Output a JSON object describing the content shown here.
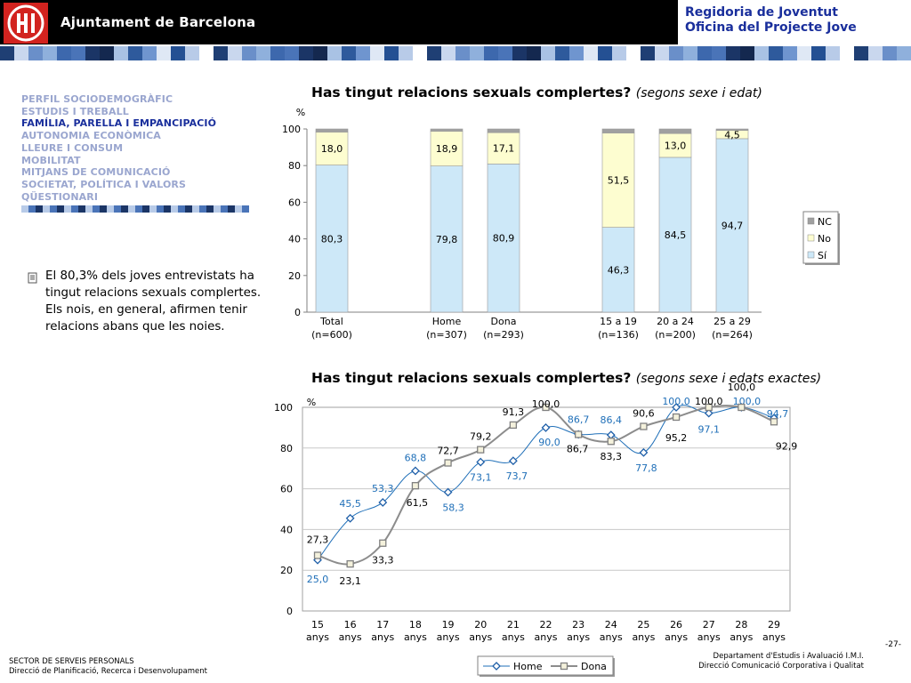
{
  "header": {
    "org_name": "Ajuntament de Barcelona",
    "dept_line1": "Regidoria de Joventut",
    "dept_line2": "Oficina del Projecte Jove",
    "colors": {
      "black": "#000000",
      "red": "#d2231f",
      "blue_text": "#1a2f9c"
    }
  },
  "nav": {
    "items": [
      "PERFIL SOCIODEMOGRÀFIC",
      "ESTUDIS I TREBALL",
      "FAMÍLIA, PARELLA I EMPANCIPACIÓ",
      "AUTONOMIA ECONÒMICA",
      "LLEURE I CONSUM",
      "MOBILITAT",
      "MITJANS DE COMUNICACIÓ",
      "SOCIETAT, POLÍTICA I VALORS",
      "QÜESTIONARI"
    ],
    "active_index": 2
  },
  "bullet_text": "El 80,3% dels joves entrevistats ha tingut relacions sexuals complertes. Els nois, en general, afirmen tenir relacions abans que les noies.",
  "footer": {
    "left_line1": "SECTOR DE SERVEIS PERSONALS",
    "left_line2": "Direcció de Planificació, Recerca i Desenvolupament",
    "right_line1": "Departament d'Estudis i Avaluació I.M.I.",
    "right_line2": "Direcció Comunicació Corporativa i Qualitat",
    "page": "-27-"
  },
  "chart_data": [
    {
      "type": "bar",
      "stacked": true,
      "title": "Has tingut relacions sexuals complertes?",
      "subtitle": "(segons sexe i edat)",
      "ylabel": "%",
      "ylim": [
        0,
        100
      ],
      "yticks": [
        0,
        20,
        40,
        60,
        80,
        100
      ],
      "categories": [
        {
          "label": "Total",
          "n": "(n=600)"
        },
        {
          "label": "Home",
          "n": "(n=307)"
        },
        {
          "label": "Dona",
          "n": "(n=293)"
        },
        {
          "label": "15 a 19",
          "n": "(n=136)"
        },
        {
          "label": "20 a 24",
          "n": "(n=200)"
        },
        {
          "label": "25 a 29",
          "n": "(n=264)"
        }
      ],
      "series": [
        {
          "name": "Sí",
          "color": "#cde8f8",
          "values": [
            80.3,
            79.8,
            80.9,
            46.3,
            84.5,
            94.7
          ],
          "labels": [
            "80,3",
            "79,8",
            "80,9",
            "46,3",
            "84,5",
            "94,7"
          ]
        },
        {
          "name": "No",
          "color": "#fdfdd0",
          "values": [
            18.0,
            18.9,
            17.1,
            51.5,
            13.0,
            4.5
          ],
          "labels": [
            "18,0",
            "18,9",
            "17,1",
            "51,5",
            "13,0",
            "4,5"
          ]
        },
        {
          "name": "NC",
          "color": "#a0a0a0",
          "values": [
            1.7,
            1.3,
            2.0,
            2.2,
            2.5,
            0.8
          ],
          "labels": [
            "",
            "",
            "",
            "",
            "",
            ""
          ]
        }
      ],
      "legend": {
        "position": "right",
        "order": [
          "NC",
          "No",
          "Sí"
        ]
      },
      "grid": false
    },
    {
      "type": "line",
      "title": "Has tingut relacions sexuals complertes?",
      "subtitle": "(segons sexe i edats exactes)",
      "ylabel": "%",
      "ylim": [
        0,
        100
      ],
      "yticks": [
        0,
        20,
        40,
        60,
        80,
        100
      ],
      "x": [
        "15",
        "16",
        "17",
        "18",
        "19",
        "20",
        "21",
        "22",
        "23",
        "24",
        "25",
        "26",
        "27",
        "28",
        "29"
      ],
      "xunit": "anys",
      "grid": true,
      "series": [
        {
          "name": "Home",
          "color": "#1f6fb8",
          "marker": "diamond",
          "values": [
            25.0,
            45.5,
            53.3,
            68.8,
            58.3,
            73.1,
            73.7,
            90.0,
            86.7,
            86.4,
            77.8,
            100.0,
            97.1,
            100.0,
            94.7
          ],
          "labels": [
            "25,0",
            "45,5",
            "53,3",
            "68,8",
            "58,3",
            "73,1",
            "73,7",
            "90,0",
            "86,7",
            "86,4",
            "77,8",
            "100,0",
            "97,1",
            "100,0",
            "94,7"
          ]
        },
        {
          "name": "Dona",
          "color": "#8c8c8c",
          "marker": "square",
          "values": [
            27.3,
            23.1,
            33.3,
            61.5,
            72.7,
            79.2,
            91.3,
            100.0,
            86.7,
            83.3,
            90.6,
            95.2,
            100.0,
            100.0,
            92.9
          ],
          "labels": [
            "27,3",
            "23,1",
            "33,3",
            "61,5",
            "72,7",
            "79,2",
            "91,3",
            "100,0",
            "86,7",
            "83,3",
            "90,6",
            "95,2",
            "100,0",
            "100,0",
            "92,9"
          ]
        }
      ],
      "legend": {
        "position": "bottom",
        "order": [
          "Home",
          "Dona"
        ]
      }
    }
  ]
}
